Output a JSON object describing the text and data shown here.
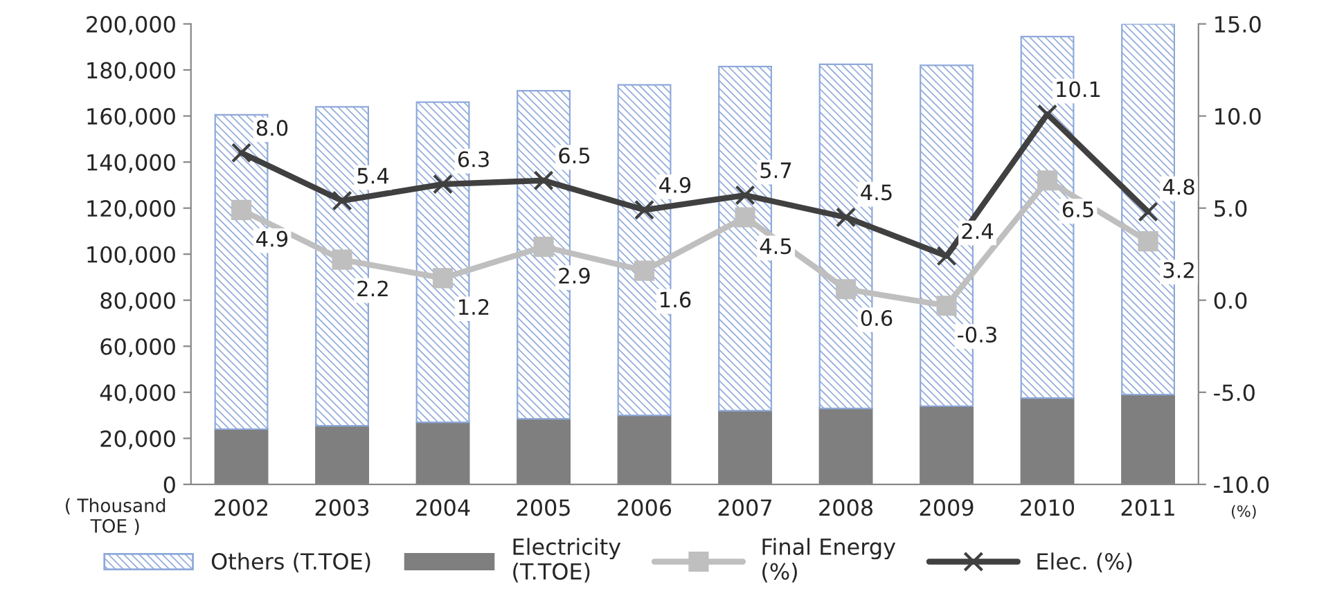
{
  "chart_data": {
    "type": "bar",
    "stacked": true,
    "categories": [
      "2002",
      "2003",
      "2004",
      "2005",
      "2006",
      "2007",
      "2008",
      "2009",
      "2010",
      "2011"
    ],
    "series": [
      {
        "name": "Electricity\n(T.TOE)",
        "color": "#7f7f7f",
        "values": [
          24000,
          25500,
          27000,
          28500,
          30000,
          32000,
          33000,
          34000,
          37500,
          39000
        ]
      },
      {
        "name": "Others (T.TOE)",
        "color": "#8ea9db",
        "values": [
          136500,
          138500,
          139000,
          142500,
          143500,
          149500,
          149500,
          148000,
          157000,
          161000
        ]
      },
      {
        "name": "Final Energy\n(%)",
        "type": "line",
        "axis": "y2",
        "color": "#bfbfbf",
        "marker": "square",
        "values": [
          4.9,
          2.2,
          1.2,
          2.9,
          1.6,
          4.5,
          0.6,
          -0.3,
          6.5,
          3.2
        ],
        "value_labels": [
          "4.9",
          "2.2",
          "1.2",
          "2.9",
          "1.6",
          "4.5",
          "0.6",
          "-0.3",
          "6.5",
          "3.2"
        ]
      },
      {
        "name": "Elec. (%)",
        "type": "line",
        "axis": "y2",
        "color": "#404040",
        "marker": "cross",
        "values": [
          8.0,
          5.4,
          6.3,
          6.5,
          4.9,
          5.7,
          4.5,
          2.4,
          10.1,
          4.8
        ],
        "value_labels": [
          "8.0",
          "5.4",
          "6.3",
          "6.5",
          "4.9",
          "5.7",
          "4.5",
          "2.4",
          "10.1",
          "4.8"
        ]
      }
    ],
    "ylabel": "( Thousand\nTOE )",
    "y2label": "(%)",
    "ylim": [
      0,
      200000
    ],
    "yticks": [
      0,
      {
        "value": 20000,
        "label": "20,000"
      },
      {
        "value": 40000,
        "label": "40,000"
      },
      {
        "value": 60000,
        "label": "60,000"
      },
      {
        "value": 80000,
        "label": "80,000"
      },
      {
        "value": 100000,
        "label": "100,000"
      },
      {
        "value": 120000,
        "label": "120,000"
      },
      {
        "value": 140000,
        "label": "140,000"
      },
      {
        "value": 160000,
        "label": "160,000"
      },
      {
        "value": 180000,
        "label": "180,000"
      },
      {
        "value": 200000,
        "label": "200,000"
      }
    ],
    "y2lim": [
      -10,
      15
    ],
    "y2ticks": [
      {
        "value": -10,
        "label": "-10.0"
      },
      {
        "value": -5,
        "label": "-5.0"
      },
      {
        "value": 0,
        "label": "0.0"
      },
      {
        "value": 5,
        "label": "5.0"
      },
      {
        "value": 10,
        "label": "10.0"
      },
      {
        "value": 15,
        "label": "15.0"
      }
    ],
    "grid": false,
    "legend": "bottom"
  }
}
